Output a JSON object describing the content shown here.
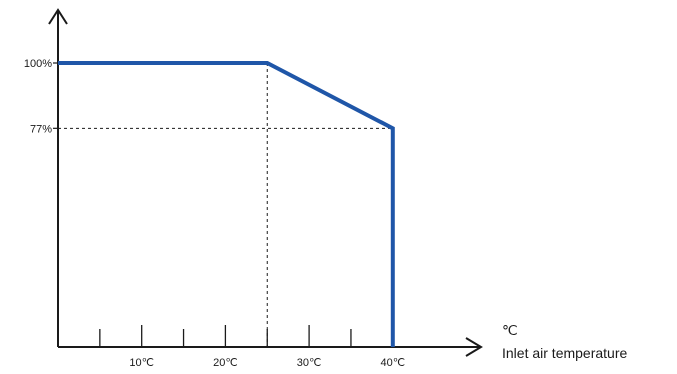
{
  "chart_data": {
    "type": "line",
    "title": "",
    "xlabel": "Inlet air temperature",
    "xunit": "℃",
    "ylabel": "",
    "x_ticks": [
      {
        "value": 5,
        "label": ""
      },
      {
        "value": 10,
        "label": "10℃"
      },
      {
        "value": 15,
        "label": ""
      },
      {
        "value": 20,
        "label": "20℃"
      },
      {
        "value": 25,
        "label": ""
      },
      {
        "value": 30,
        "label": "30℃"
      },
      {
        "value": 35,
        "label": ""
      },
      {
        "value": 40,
        "label": "40℃"
      }
    ],
    "y_ticks": [
      {
        "value": 100,
        "label": "100%"
      },
      {
        "value": 77,
        "label": "77%"
      }
    ],
    "xlim": [
      0,
      48
    ],
    "ylim": [
      0,
      100
    ],
    "grid": false,
    "series": [
      {
        "color": "#1f56a8",
        "points": [
          {
            "x": 0,
            "y": 100
          },
          {
            "x": 25,
            "y": 100
          },
          {
            "x": 40,
            "y": 77
          },
          {
            "x": 40,
            "y": 0
          }
        ]
      }
    ],
    "reference_lines": [
      {
        "x": 25,
        "y": 100
      },
      {
        "x": 40,
        "y": 77
      }
    ]
  }
}
